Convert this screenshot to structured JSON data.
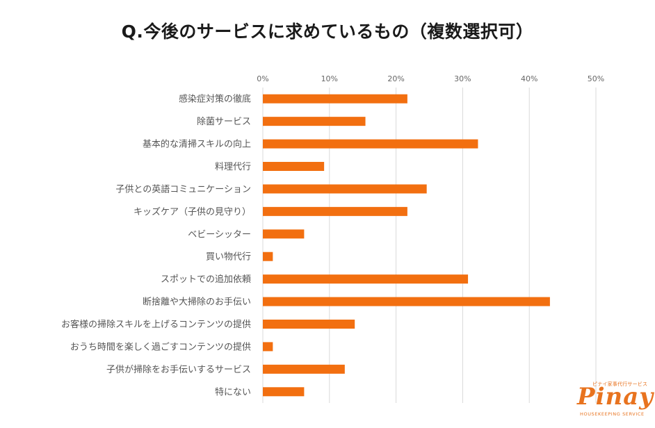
{
  "chart_data": {
    "type": "bar",
    "orientation": "horizontal",
    "title": "Q.今後のサービスに求めているもの（複数選択可）",
    "xlabel": "",
    "ylabel": "",
    "xlim": [
      0,
      50
    ],
    "x_ticks": [
      "0%",
      "10%",
      "20%",
      "30%",
      "40%",
      "50%"
    ],
    "x_tick_values": [
      0,
      10,
      20,
      30,
      40,
      50
    ],
    "grid": true,
    "bar_color": "#F26F10",
    "categories": [
      "感染症対策の徹底",
      "除菌サービス",
      "基本的な清掃スキルの向上",
      "料理代行",
      "子供との英語コミュニケーション",
      "キッズケア（子供の見守り）",
      "ベビーシッター",
      "買い物代行",
      "スポットでの追加依頼",
      "断捨離や大掃除のお手伝い",
      "お客様の掃除スキルを上げるコンテンツの提供",
      "おうち時間を楽しく過ごすコンテンツの提供",
      "子供が掃除をお手伝いするサービス",
      "特にない"
    ],
    "values": [
      21.7,
      15.4,
      32.3,
      9.2,
      24.6,
      21.7,
      6.2,
      1.5,
      30.8,
      43.1,
      13.8,
      1.5,
      12.3,
      6.2
    ]
  },
  "logo": {
    "word": "Pinay",
    "tagline_top": "ピナイ家事代行サービス",
    "tagline_bottom": "HOUSEKEEPING SERVICE",
    "color": "#E8731F"
  },
  "colors": {
    "grid": "#d9d9d9",
    "axis_text": "#666666",
    "label_text": "#555555"
  }
}
